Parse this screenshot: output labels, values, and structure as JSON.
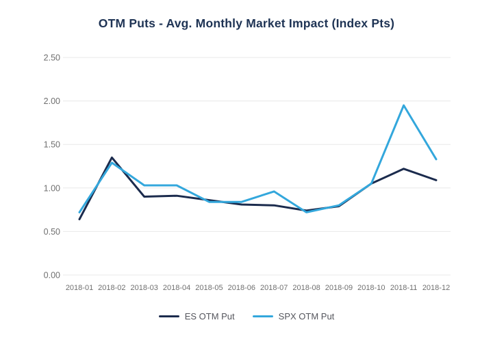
{
  "title": "OTM Puts - Avg. Monthly Market Impact (Index Pts)",
  "colors": {
    "background": "#ffffff",
    "title_text": "#1e3354",
    "grid_line": "#e8e8e8",
    "axis_tick_text": "#6f6f6f",
    "legend_text": "#54555c",
    "es_line": "#1b2b4d",
    "spx_line": "#33a7dc"
  },
  "chart_data": {
    "type": "line",
    "title": "OTM Puts - Avg. Monthly Market Impact (Index Pts)",
    "xlabel": "",
    "ylabel": "",
    "categories": [
      "2018-01",
      "2018-02",
      "2018-03",
      "2018-04",
      "2018-05",
      "2018-06",
      "2018-07",
      "2018-08",
      "2018-09",
      "2018-10",
      "2018-11",
      "2018-12"
    ],
    "series": [
      {
        "name": "ES OTM Put",
        "color": "#1b2b4d",
        "values": [
          0.64,
          1.35,
          0.9,
          0.91,
          0.86,
          0.81,
          0.8,
          0.74,
          0.79,
          1.05,
          1.22,
          1.09
        ]
      },
      {
        "name": "SPX OTM Put",
        "color": "#33a7dc",
        "values": [
          0.72,
          1.29,
          1.03,
          1.03,
          0.84,
          0.84,
          0.96,
          0.72,
          0.8,
          1.05,
          1.95,
          1.33
        ]
      }
    ],
    "ylim": [
      0.0,
      2.5
    ],
    "yticks": [
      0.0,
      0.5,
      1.0,
      1.5,
      2.0,
      2.5
    ],
    "ytick_labels": [
      "0.00",
      "0.50",
      "1.00",
      "1.50",
      "2.00",
      "2.50"
    ],
    "grid": "horizontal",
    "legend_position": "bottom"
  }
}
